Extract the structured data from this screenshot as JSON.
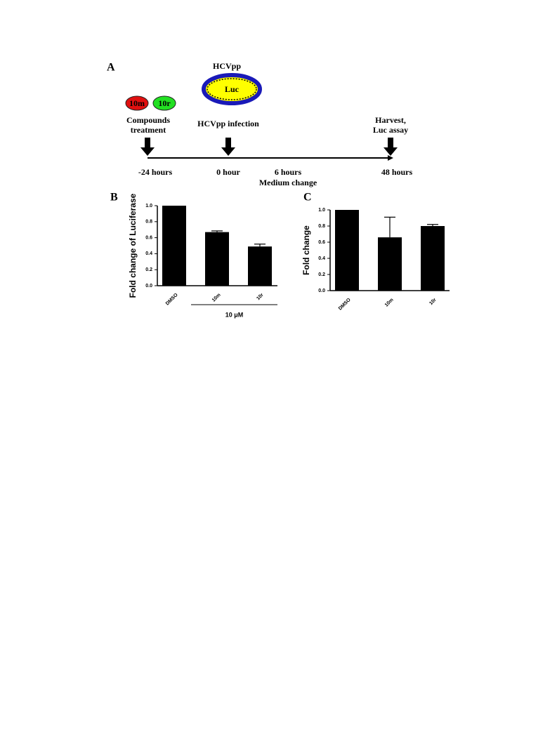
{
  "diagram": {
    "panel_label": "A",
    "virus": "HCVpp",
    "reporter": "Luc",
    "compounds": [
      "10m",
      "10r"
    ],
    "steps": [
      [
        "Compounds",
        "treatment"
      ],
      [
        "HCVpp infection"
      ],
      [
        "Harvest,",
        "Luc assay"
      ]
    ],
    "times": [
      "-24 hours",
      "0 hour",
      "6 hours",
      "48 hours"
    ],
    "medium_change": "Medium change"
  },
  "chart_data": [
    {
      "type": "bar",
      "panel_label": "B",
      "ylabel": "Fold change of Luciferase",
      "categories": [
        "DMSO",
        "10m",
        "10r"
      ],
      "values": [
        1.0,
        0.67,
        0.49
      ],
      "errors": [
        0,
        0.015,
        0.03
      ],
      "color": "#000000",
      "group_label": "10 μM",
      "ylim": [
        0,
        1.0
      ],
      "yticks": [
        {
          "value": 0,
          "label": "0.0"
        },
        {
          "value": 0.2,
          "label": "0.2"
        },
        {
          "value": 0.4,
          "label": "0.4"
        },
        {
          "value": 0.6,
          "label": "0.6"
        },
        {
          "value": 0.8,
          "label": "0.8"
        },
        {
          "value": 1.0,
          "label": "1.0"
        }
      ]
    },
    {
      "type": "bar",
      "panel_label": "C",
      "ylabel": "Fold change",
      "categories": [
        "DMSO",
        "10m",
        "10r"
      ],
      "values": [
        1.0,
        0.66,
        0.8
      ],
      "errors": [
        0,
        0.25,
        0.02
      ],
      "color": "#000000",
      "ylim": [
        0,
        1.0
      ],
      "yticks": [
        {
          "value": 0,
          "label": "0.0"
        },
        {
          "value": 0.2,
          "label": "0.2"
        },
        {
          "value": 0.4,
          "label": "0.4"
        },
        {
          "value": 0.6,
          "label": "0.6"
        },
        {
          "value": 0.8,
          "label": "0.8"
        },
        {
          "value": 1.0,
          "label": "1.0"
        }
      ]
    }
  ]
}
